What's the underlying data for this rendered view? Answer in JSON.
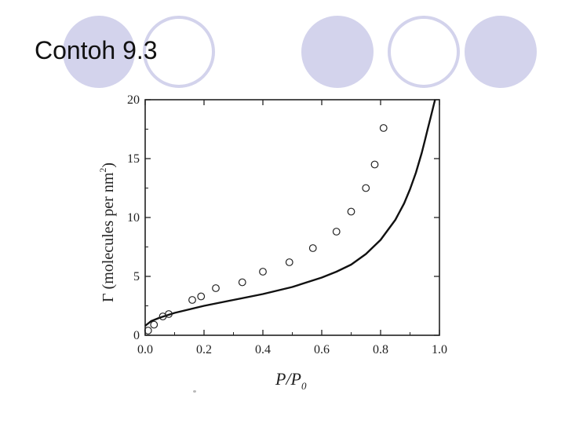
{
  "slide": {
    "title": "Contoh 9.3"
  },
  "decoration": {
    "circle_color": "#d3d3ec",
    "circles": [
      {
        "style": "filled"
      },
      {
        "style": "ring"
      },
      {
        "style": "filled"
      },
      {
        "style": "ring"
      },
      {
        "style": "filled"
      }
    ]
  },
  "chart_data": {
    "type": "scatter",
    "title": "",
    "xlabel": "P/P0",
    "xlabel_main": "P/P",
    "xlabel_sub": "0",
    "ylabel": "Γ (molecules per nm²)",
    "ylabel_main": "Γ (molecules per nm",
    "ylabel_sup": "2",
    "ylabel_close": ")",
    "xlim": [
      0,
      1.0
    ],
    "ylim": [
      0,
      20
    ],
    "x_ticks": [
      "0.0",
      "0.2",
      "0.4",
      "0.6",
      "0.8",
      "1.0"
    ],
    "y_ticks": [
      "0",
      "5",
      "10",
      "15",
      "20"
    ],
    "grid": false,
    "series": [
      {
        "kind": "points",
        "marker": "open-circle",
        "x": [
          0.01,
          0.03,
          0.06,
          0.08,
          0.16,
          0.19,
          0.24,
          0.33,
          0.4,
          0.49,
          0.57,
          0.65,
          0.7,
          0.75,
          0.78,
          0.81
        ],
        "y": [
          0.4,
          0.9,
          1.6,
          1.8,
          3.0,
          3.3,
          4.0,
          4.5,
          5.4,
          6.2,
          7.4,
          8.8,
          10.5,
          12.5,
          14.5,
          17.6
        ]
      },
      {
        "kind": "line",
        "x": [
          0.0,
          0.02,
          0.05,
          0.1,
          0.15,
          0.2,
          0.3,
          0.4,
          0.5,
          0.6,
          0.65,
          0.7,
          0.75,
          0.8,
          0.85,
          0.88,
          0.9,
          0.92,
          0.94,
          0.95,
          0.96,
          0.97,
          0.98,
          0.985
        ],
        "y": [
          0.8,
          1.2,
          1.5,
          1.9,
          2.2,
          2.5,
          3.0,
          3.5,
          4.1,
          4.9,
          5.4,
          6.0,
          6.9,
          8.1,
          9.8,
          11.2,
          12.4,
          13.8,
          15.5,
          16.5,
          17.5,
          18.5,
          19.5,
          20.0
        ]
      }
    ]
  }
}
